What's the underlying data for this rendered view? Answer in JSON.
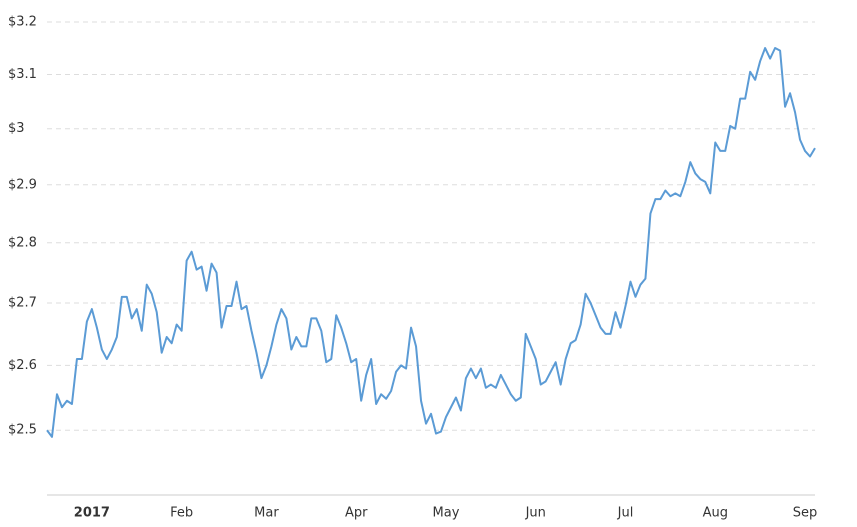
{
  "chart_data": {
    "type": "line",
    "categories": [
      null,
      null,
      null,
      null,
      null,
      null,
      null,
      null,
      null,
      "2017",
      null,
      null,
      null,
      null,
      null,
      null,
      null,
      null,
      null,
      null,
      null,
      null,
      null,
      null,
      null,
      null,
      null,
      "Feb",
      null,
      null,
      null,
      null,
      null,
      null,
      null,
      null,
      null,
      null,
      null,
      null,
      null,
      null,
      null,
      null,
      "Mar",
      null,
      null,
      null,
      null,
      null,
      null,
      null,
      null,
      null,
      null,
      null,
      null,
      null,
      null,
      null,
      null,
      null,
      "Apr",
      null,
      null,
      null,
      null,
      null,
      null,
      null,
      null,
      null,
      null,
      null,
      null,
      null,
      null,
      null,
      null,
      null,
      "May",
      null,
      null,
      null,
      null,
      null,
      null,
      null,
      null,
      null,
      null,
      null,
      null,
      null,
      null,
      null,
      null,
      null,
      "Jun",
      null,
      null,
      null,
      null,
      null,
      null,
      null,
      null,
      null,
      null,
      null,
      null,
      null,
      null,
      null,
      null,
      null,
      "Jul",
      null,
      null,
      null,
      null,
      null,
      null,
      null,
      null,
      null,
      null,
      null,
      null,
      null,
      null,
      null,
      null,
      null,
      "Aug",
      null,
      null,
      null,
      null,
      null,
      null,
      null,
      null,
      null,
      null,
      null,
      null,
      null,
      null,
      null,
      null,
      null,
      "Sep",
      null,
      null
    ],
    "values": [
      2.5,
      2.49,
      2.555,
      2.535,
      2.545,
      2.54,
      2.61,
      2.61,
      2.67,
      2.69,
      2.66,
      2.625,
      2.61,
      2.625,
      2.645,
      2.71,
      2.71,
      2.675,
      2.69,
      2.655,
      2.73,
      2.715,
      2.685,
      2.62,
      2.645,
      2.635,
      2.665,
      2.655,
      2.77,
      2.785,
      2.755,
      2.76,
      2.72,
      2.765,
      2.75,
      2.66,
      2.695,
      2.695,
      2.735,
      2.69,
      2.695,
      2.655,
      2.62,
      2.58,
      2.6,
      2.63,
      2.665,
      2.69,
      2.675,
      2.625,
      2.645,
      2.63,
      2.63,
      2.675,
      2.675,
      2.655,
      2.605,
      2.61,
      2.68,
      2.66,
      2.635,
      2.605,
      2.61,
      2.545,
      2.585,
      2.61,
      2.54,
      2.555,
      2.548,
      2.56,
      2.59,
      2.6,
      2.595,
      2.66,
      2.63,
      2.545,
      2.51,
      2.525,
      2.495,
      2.498,
      2.52,
      2.535,
      2.55,
      2.53,
      2.58,
      2.595,
      2.58,
      2.595,
      2.565,
      2.57,
      2.565,
      2.585,
      2.57,
      2.555,
      2.545,
      2.55,
      2.65,
      2.63,
      2.61,
      2.57,
      2.575,
      2.59,
      2.605,
      2.57,
      2.61,
      2.635,
      2.64,
      2.665,
      2.715,
      2.7,
      2.68,
      2.66,
      2.65,
      2.65,
      2.685,
      2.66,
      2.695,
      2.735,
      2.71,
      2.73,
      2.74,
      2.85,
      2.875,
      2.875,
      2.89,
      2.88,
      2.885,
      2.88,
      2.905,
      2.94,
      2.92,
      2.91,
      2.905,
      2.885,
      2.975,
      2.96,
      2.96,
      3.005,
      3.0,
      3.055,
      3.055,
      3.105,
      3.09,
      3.125,
      3.15,
      3.13,
      3.15,
      3.145,
      3.04,
      3.065,
      3.03,
      2.98,
      2.96,
      2.95,
      2.965
    ],
    "color": "#5b9bd5",
    "log_scale": true,
    "ylim": [
      2.404,
      3.233
    ],
    "yticks": [
      {
        "value": 2.5,
        "label": "$2.5"
      },
      {
        "value": 2.6,
        "label": "$2.6"
      },
      {
        "value": 2.7,
        "label": "$2.7"
      },
      {
        "value": 2.8,
        "label": "$2.8"
      },
      {
        "value": 2.9,
        "label": "$2.9"
      },
      {
        "value": 3.0,
        "label": "$3"
      },
      {
        "value": 3.1,
        "label": "$3.1"
      },
      {
        "value": 3.2,
        "label": "$3.2"
      }
    ],
    "grid": true
  }
}
